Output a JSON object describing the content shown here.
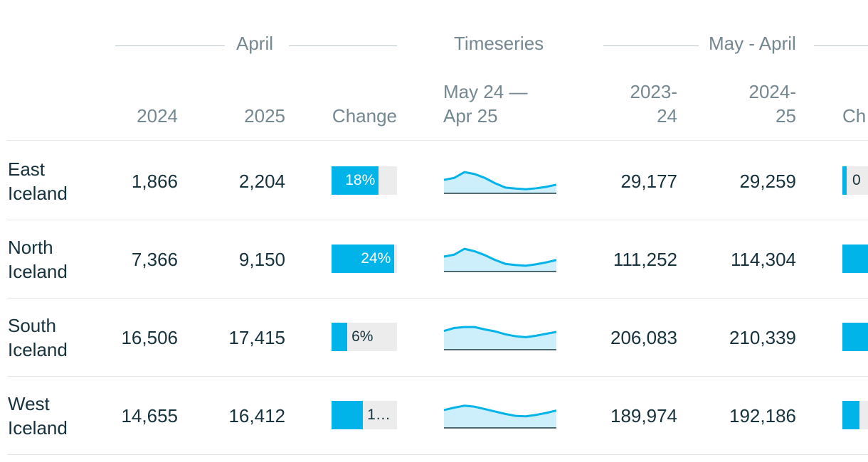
{
  "groups": {
    "april": "April",
    "timeseries": "Timeseries",
    "may_april": "May - April"
  },
  "columns": {
    "y2024": "2024",
    "y2025": "2025",
    "change": "Change",
    "ts_line1": "May 24 —",
    "ts_line2": "Apr 25",
    "p1_line1": "2023-",
    "p1_line2": "24",
    "p2_line1": "2024-",
    "p2_line2": "25",
    "change2": "Ch"
  },
  "colors": {
    "accent": "#00b3e9",
    "area": "#cdeffb",
    "track": "#ececec"
  },
  "rows": [
    {
      "region_line1": "East",
      "region_line2": "Iceland",
      "v2024": "1,866",
      "v2025": "2,204",
      "change_label": "18%",
      "change_pct": 18,
      "sparkline": [
        0.44,
        0.52,
        0.76,
        0.68,
        0.52,
        0.3,
        0.12,
        0.08,
        0.05,
        0.09,
        0.15,
        0.24
      ],
      "p1": "29,177",
      "p2": "29,259",
      "change2_label": "0",
      "change2_pct": 0.3
    },
    {
      "region_line1": "North",
      "region_line2": "Iceland",
      "v2024": "7,366",
      "v2025": "9,150",
      "change_label": "24%",
      "change_pct": 24,
      "sparkline": [
        0.5,
        0.58,
        0.82,
        0.72,
        0.56,
        0.36,
        0.2,
        0.15,
        0.12,
        0.18,
        0.26,
        0.36
      ],
      "p1": "111,252",
      "p2": "114,304",
      "change2_label": "",
      "change2_pct": 2.7
    },
    {
      "region_line1": "South",
      "region_line2": "Iceland",
      "v2024": "16,506",
      "v2025": "17,415",
      "change_label": "6%",
      "change_pct": 6,
      "sparkline": [
        0.66,
        0.78,
        0.82,
        0.82,
        0.72,
        0.64,
        0.52,
        0.44,
        0.4,
        0.46,
        0.54,
        0.62
      ],
      "p1": "206,083",
      "p2": "210,339",
      "change2_label": "",
      "change2_pct": 2.1
    },
    {
      "region_line1": "West",
      "region_line2": "Iceland",
      "v2024": "14,655",
      "v2025": "16,412",
      "change_label": "1…",
      "change_pct": 12,
      "sparkline": [
        0.62,
        0.72,
        0.8,
        0.76,
        0.66,
        0.56,
        0.46,
        0.38,
        0.36,
        0.42,
        0.5,
        0.6
      ],
      "p1": "189,974",
      "p2": "192,186",
      "change2_label": "",
      "change2_pct": 1.2
    }
  ]
}
